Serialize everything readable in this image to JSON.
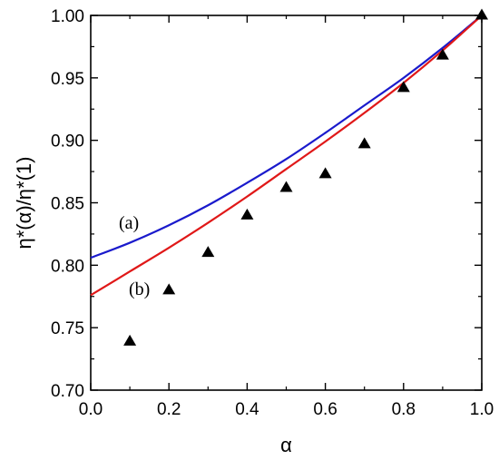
{
  "chart_data": {
    "type": "line",
    "xlabel": "α",
    "ylabel": "η*(α)/η*(1)",
    "xlim": [
      0.0,
      1.0
    ],
    "ylim": [
      0.7,
      1.0
    ],
    "x_ticks": [
      "0.0",
      "0.2",
      "0.4",
      "0.6",
      "0.8",
      "1.0"
    ],
    "y_ticks": [
      "0.70",
      "0.75",
      "0.80",
      "0.85",
      "0.90",
      "0.95",
      "1.00"
    ],
    "grid": false,
    "series": [
      {
        "label": "(a)",
        "kind": "line",
        "color": "#1a1acc",
        "x": [
          0.0,
          0.1,
          0.2,
          0.3,
          0.4,
          0.5,
          0.6,
          0.7,
          0.8,
          0.9,
          1.0
        ],
        "y": [
          0.806,
          0.818,
          0.832,
          0.848,
          0.866,
          0.885,
          0.906,
          0.928,
          0.95,
          0.974,
          1.0
        ]
      },
      {
        "label": "(b)",
        "kind": "line",
        "color": "#e01818",
        "x": [
          0.0,
          0.1,
          0.2,
          0.3,
          0.4,
          0.5,
          0.6,
          0.7,
          0.8,
          0.9,
          1.0
        ],
        "y": [
          0.776,
          0.795,
          0.814,
          0.834,
          0.855,
          0.877,
          0.899,
          0.922,
          0.946,
          0.972,
          1.0
        ]
      },
      {
        "kind": "scatter",
        "marker": "triangle",
        "color": "#000000",
        "x": [
          0.1,
          0.2,
          0.3,
          0.4,
          0.5,
          0.6,
          0.7,
          0.8,
          0.9,
          1.0
        ],
        "y": [
          0.739,
          0.78,
          0.81,
          0.84,
          0.862,
          0.873,
          0.897,
          0.942,
          0.968,
          1.0
        ]
      }
    ],
    "annotations": [
      "(a)",
      "(b)"
    ]
  }
}
